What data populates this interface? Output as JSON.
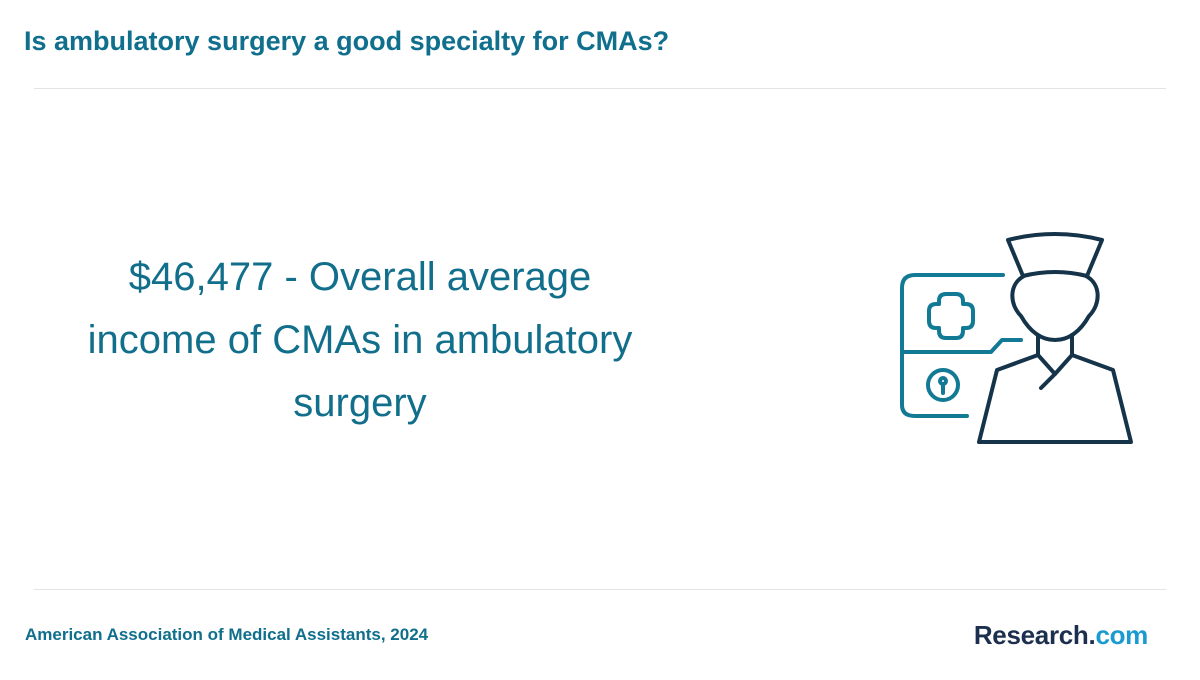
{
  "header": {
    "title": "Is ambulatory surgery a good specialty for CMAs?"
  },
  "main": {
    "stat_text": "$46,477 - Overall average income of CMAs in ambulatory surgery",
    "illustration_icon": "medical-assistant-icon"
  },
  "footer": {
    "source": "American Association of Medical Assistants, 2024",
    "brand_name": "Research.",
    "brand_tld": "com"
  },
  "colors": {
    "title": "#0f6f8c",
    "stat": "#126f8b",
    "icon_teal": "#137a95",
    "icon_dark": "#15344a",
    "brand_dark": "#1d2f4f",
    "brand_accent": "#1a9bd0"
  }
}
